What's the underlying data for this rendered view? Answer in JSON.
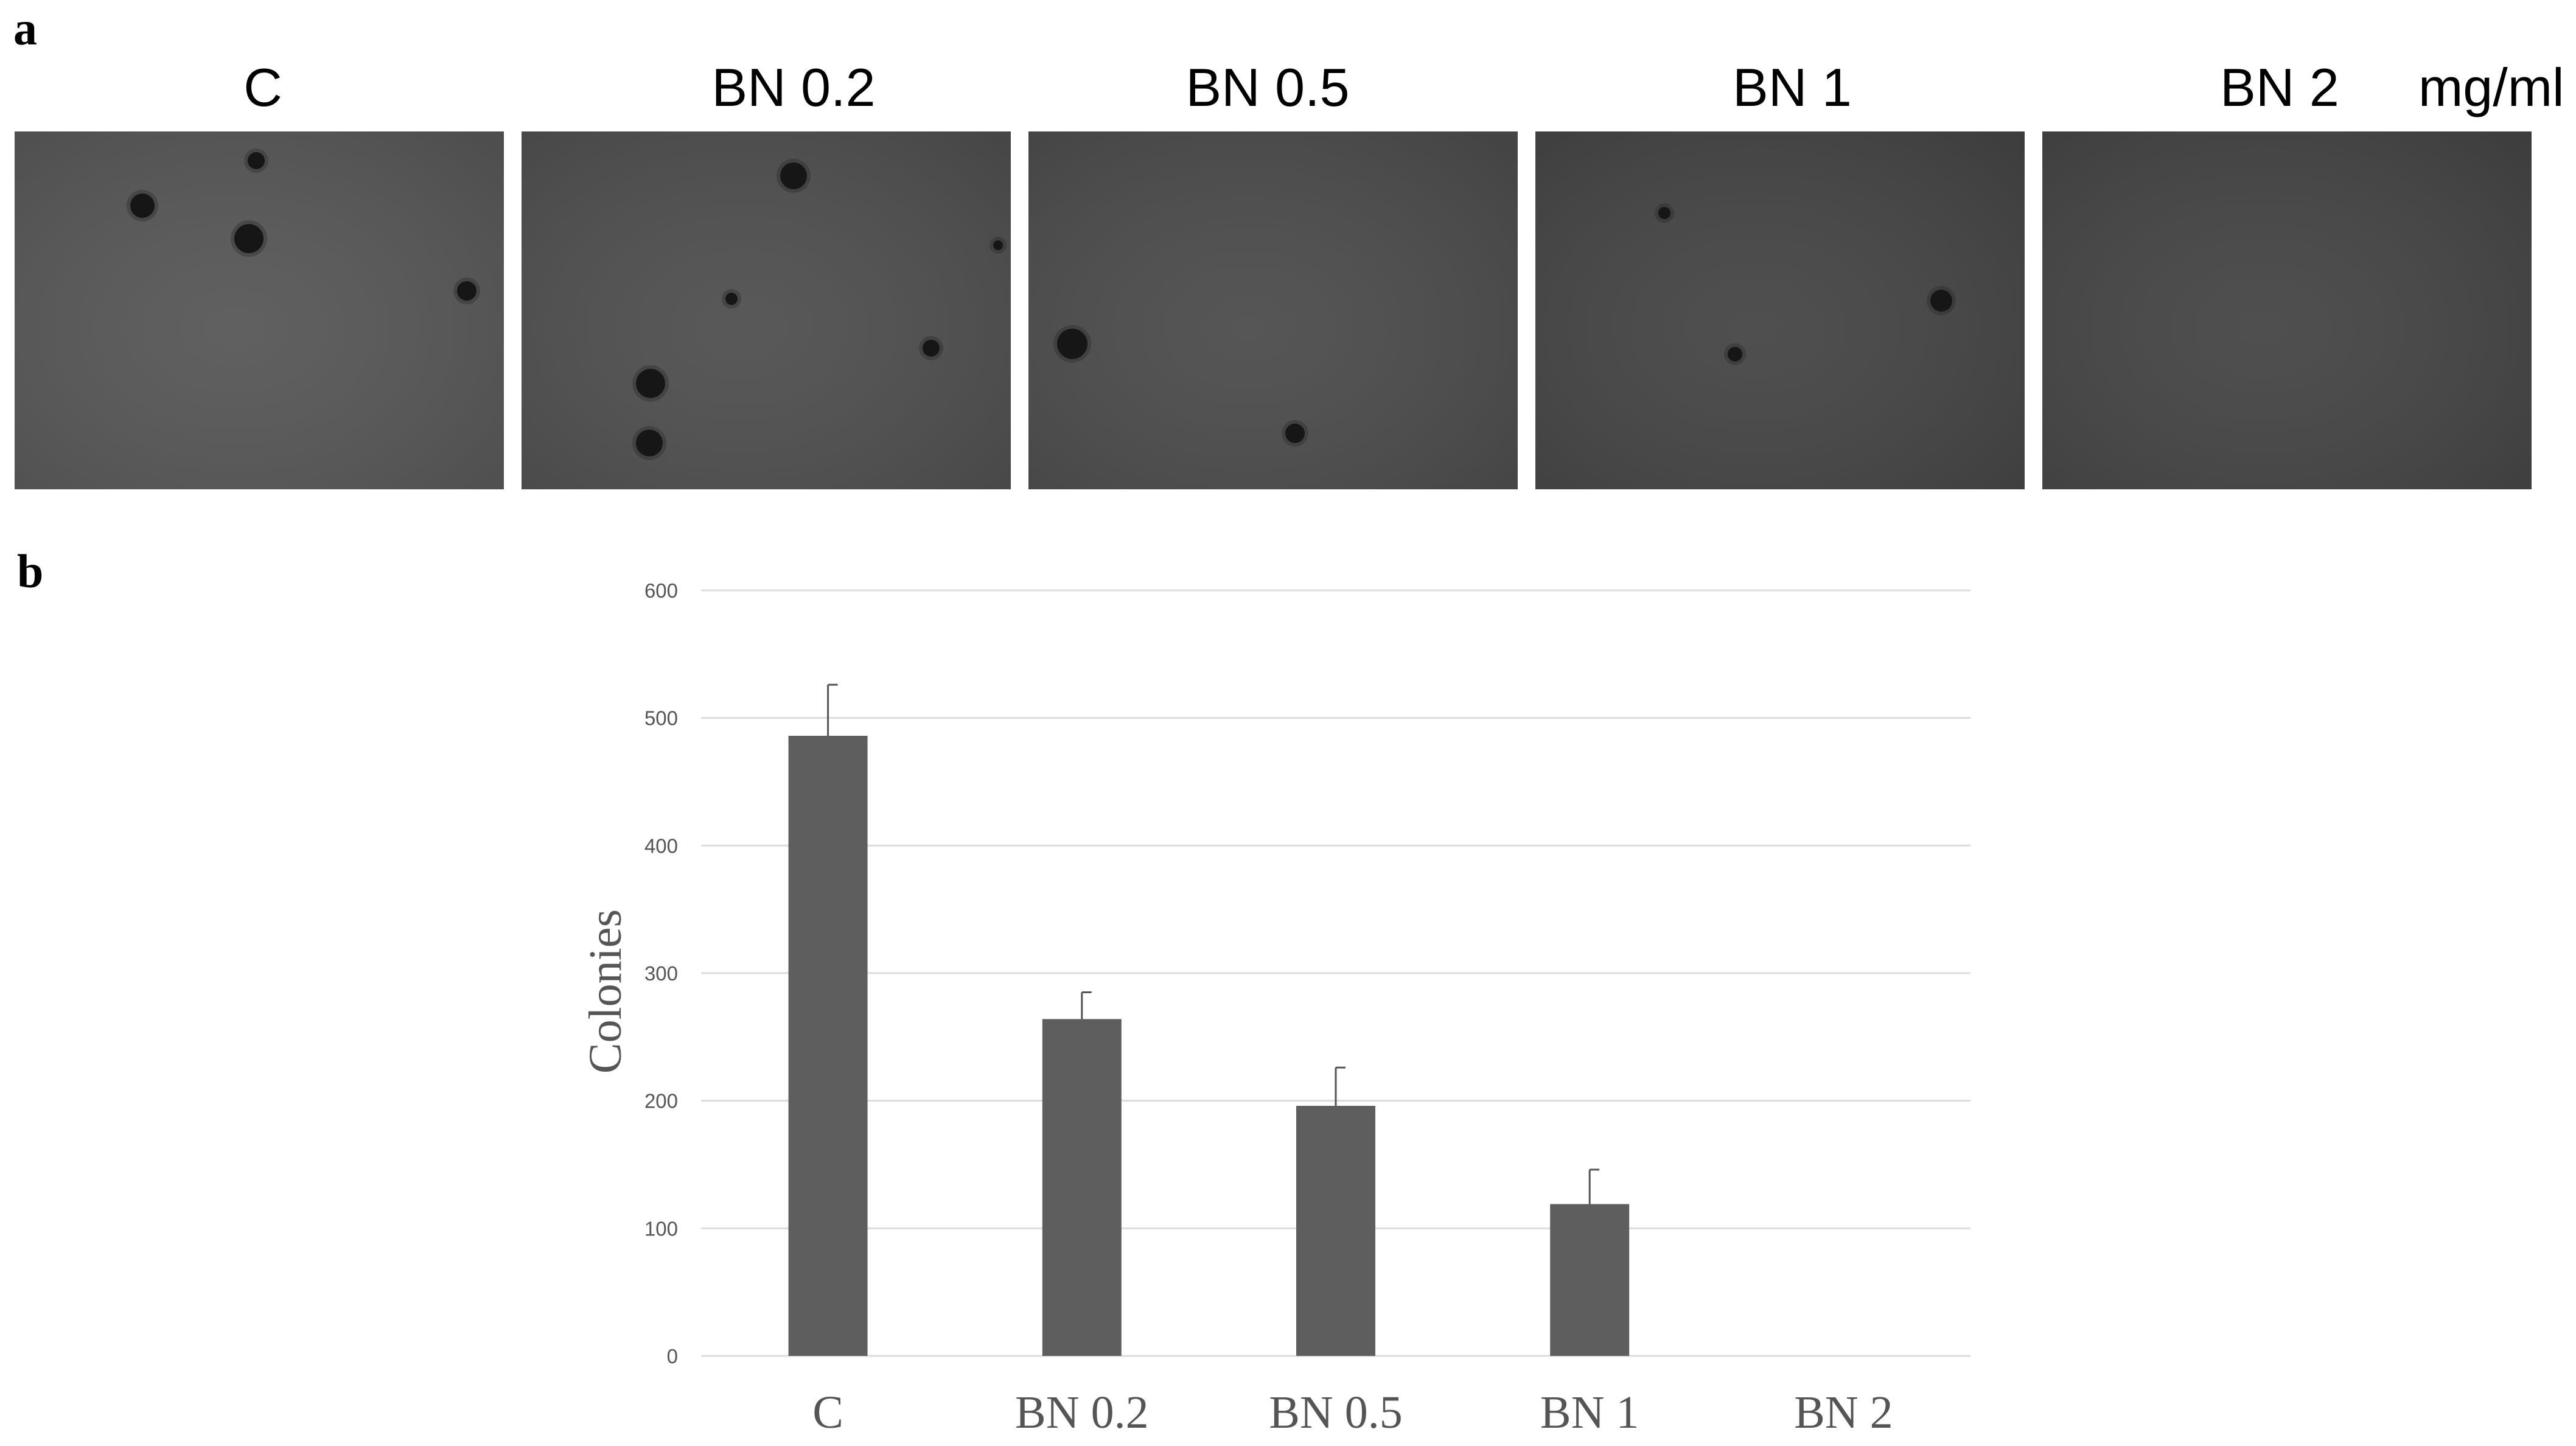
{
  "figure": {
    "panel_a_letter": "a",
    "panel_b_letter": "b",
    "lanes": [
      {
        "label": "C",
        "tone": "#565656",
        "colonies": [
          [
            210,
            122,
            20
          ],
          [
            385,
            176,
            24
          ],
          [
            397,
            48,
            14
          ],
          [
            743,
            262,
            16
          ],
          [
            162,
            654,
            16
          ],
          [
            633,
            697,
            30
          ],
          [
            820,
            620,
            10
          ]
        ]
      },
      {
        "label": "BN 0.2",
        "tone": "#4e4e4e",
        "colonies": [
          [
            447,
            73,
            22
          ],
          [
            212,
            414,
            24
          ],
          [
            210,
            512,
            22
          ],
          [
            673,
            356,
            14
          ],
          [
            783,
            187,
            8
          ],
          [
            345,
            275,
            10
          ]
        ]
      },
      {
        "label": "BN 0.5",
        "tone": "#4b4b4b",
        "colonies": [
          [
            72,
            349,
            25
          ],
          [
            438,
            496,
            16
          ]
        ]
      },
      {
        "label": "BN 1",
        "tone": "#444444",
        "colonies": [
          [
            212,
            134,
            10
          ],
          [
            667,
            278,
            18
          ],
          [
            328,
            366,
            12
          ]
        ]
      },
      {
        "label": "BN 2",
        "tone": "#444444",
        "colonies": []
      }
    ],
    "unit": "mg/ml"
  },
  "chart_data": {
    "type": "bar",
    "categories": [
      "C",
      "BN 0.2",
      "BN 0.5",
      "BN 1",
      "BN 2"
    ],
    "values": [
      486,
      264,
      196,
      119,
      0
    ],
    "errors": [
      40,
      21,
      30,
      27,
      0
    ],
    "ylabel": "Colonies",
    "ylim": [
      0,
      600
    ],
    "yticks": [
      0,
      100,
      200,
      300,
      400,
      500,
      600
    ],
    "grid": true,
    "bar_color": "#5e5e5e",
    "grid_color": "#dcdcdc"
  }
}
